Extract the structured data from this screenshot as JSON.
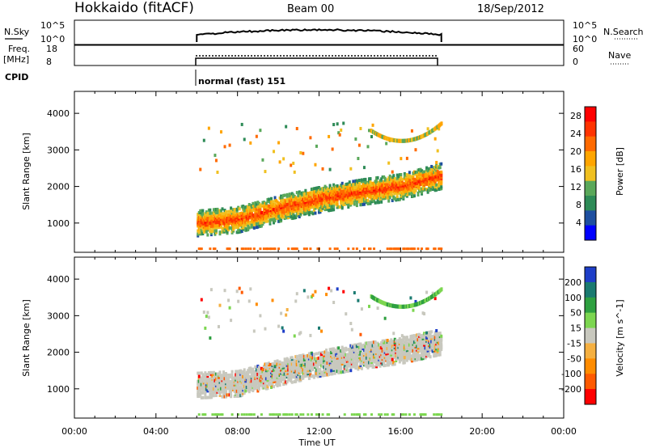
{
  "header": {
    "station": "Hokkaido (fitACF)",
    "beam": "Beam 00",
    "date": "18/Sep/2012"
  },
  "noise_panel": {
    "left_label": "N.Sky",
    "left_ticks": [
      "10^5",
      "10^0"
    ],
    "right_ticks": [
      "10^5",
      "10^0"
    ],
    "right_label": "N.Search"
  },
  "freq_panel": {
    "left_label_1": "Freq.",
    "left_label_2": "[MHz]",
    "left_ticks": [
      "18",
      "8"
    ],
    "right_ticks": [
      "60",
      "0"
    ],
    "right_label": "Nave"
  },
  "cpid": {
    "label": "CPID",
    "mode_text": "normal (fast) 151"
  },
  "colors": {
    "power_scale": [
      "#0000ff",
      "#1e4fa0",
      "#2e8b57",
      "#5aa85a",
      "#f0c020",
      "#ffa500",
      "#ff6a00",
      "#ff3300",
      "#ff0000"
    ],
    "velocity_scale": [
      "#ff0000",
      "#ff5a00",
      "#ff8c00",
      "#f5b041",
      "#c8c8be",
      "#7cd650",
      "#2ea040",
      "#1a7a70",
      "#1e3ec8"
    ]
  },
  "chart_data": [
    {
      "type": "heatmap",
      "title": "",
      "xlabel": "Time UT",
      "ylabel": "Slant Range [km]",
      "xlim": [
        "00:00",
        "24:00"
      ],
      "x_ticks": [
        "00:00",
        "04:00",
        "08:00",
        "12:00",
        "16:00",
        "20:00",
        "00:00"
      ],
      "ylim": [
        200,
        4600
      ],
      "y_ticks": [
        "1000",
        "2000",
        "3000",
        "4000"
      ],
      "colorbar_label": "Power [dB]",
      "colorbar_ticks": [
        "4",
        "8",
        "12",
        "16",
        "20",
        "24",
        "28"
      ],
      "colorbar_range": [
        0,
        30
      ],
      "data_window_ut": [
        "06:00",
        "18:00"
      ],
      "main_echo_band": [
        {
          "time": "06:00",
          "range_km": 1000,
          "power_db": 28
        },
        {
          "time": "08:00",
          "range_km": 1100,
          "power_db": 28
        },
        {
          "time": "10:00",
          "range_km": 1400,
          "power_db": 24
        },
        {
          "time": "12:00",
          "range_km": 1650,
          "power_db": 22
        },
        {
          "time": "14:00",
          "range_km": 1850,
          "power_db": 20
        },
        {
          "time": "16:00",
          "range_km": 2000,
          "power_db": 20
        },
        {
          "time": "18:00",
          "range_km": 2300,
          "power_db": 18
        }
      ]
    },
    {
      "type": "heatmap",
      "title": "",
      "xlabel": "Time UT",
      "ylabel": "Slant Range [km]",
      "xlim": [
        "00:00",
        "24:00"
      ],
      "x_ticks": [
        "00:00",
        "04:00",
        "08:00",
        "12:00",
        "16:00",
        "20:00",
        "00:00"
      ],
      "ylim": [
        200,
        4600
      ],
      "y_ticks": [
        "1000",
        "2000",
        "3000",
        "4000"
      ],
      "colorbar_label": "Velocity [m s^-1]",
      "colorbar_ticks": [
        "200",
        "100",
        "50",
        "15",
        "-15",
        "-50",
        "-100",
        "-200"
      ],
      "colorbar_range": [
        -300,
        300
      ],
      "data_window_ut": [
        "06:00",
        "18:00"
      ],
      "main_echo_band": [
        {
          "time": "06:00",
          "range_km": 1100,
          "velocity": 0
        },
        {
          "time": "08:00",
          "range_km": 1150,
          "velocity": 0
        },
        {
          "time": "10:00",
          "range_km": 1450,
          "velocity": -5
        },
        {
          "time": "12:00",
          "range_km": 1700,
          "velocity": 0
        },
        {
          "time": "14:00",
          "range_km": 1900,
          "velocity": -20
        },
        {
          "time": "16:00",
          "range_km": 2050,
          "velocity": 0
        },
        {
          "time": "18:00",
          "range_km": 2300,
          "velocity": 0
        }
      ]
    }
  ]
}
